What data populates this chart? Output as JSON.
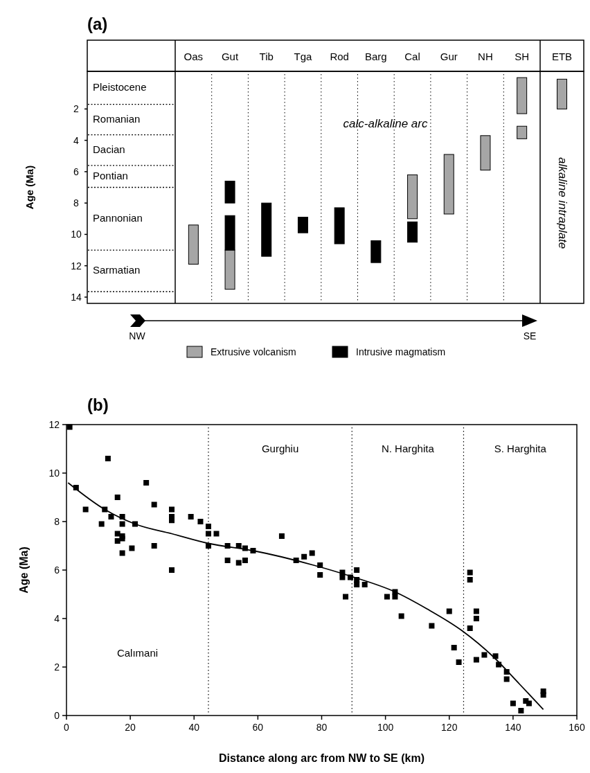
{
  "chart_data": [
    {
      "type": "bar",
      "title": "(a)",
      "ylabel": "Age (Ma)",
      "categories": [
        null,
        "Oas",
        "Gut",
        "Tib",
        "Tga",
        "Rod",
        "Barg",
        "Cal",
        "Gur",
        "NH",
        "SH",
        "ETB"
      ],
      "series": [
        {
          "name": "Extrusive volcanism",
          "color": "#a6a6a6",
          "base": [
            null,
            9.4,
            11.0,
            null,
            null,
            null,
            null,
            6.2,
            4.9,
            3.7,
            0.0,
            0.1
          ],
          "values": [
            null,
            2.5,
            2.5,
            null,
            null,
            null,
            null,
            2.8,
            3.8,
            2.2,
            2.3,
            1.9
          ]
        },
        {
          "name": "Intrusive magmatism",
          "color": "#000000",
          "base": [
            null,
            null,
            8.8,
            8.0,
            8.9,
            8.3,
            10.4,
            9.2,
            null,
            null,
            null,
            null
          ],
          "values": [
            null,
            null,
            2.2,
            3.4,
            1.0,
            2.3,
            1.4,
            1.3,
            null,
            null,
            null,
            null
          ]
        },
        {
          "color": "#a6a6a6",
          "base": [
            null,
            null,
            null,
            null,
            null,
            null,
            null,
            null,
            null,
            null,
            3.1,
            null
          ],
          "values": [
            null,
            null,
            null,
            null,
            null,
            null,
            null,
            null,
            null,
            null,
            0.8,
            null
          ]
        },
        {
          "color": "#000000",
          "base": [
            null,
            null,
            6.6,
            null,
            null,
            null,
            null,
            null,
            null,
            null,
            null,
            null
          ],
          "values": [
            null,
            null,
            1.4,
            null,
            null,
            null,
            null,
            null,
            null,
            null,
            null,
            null
          ]
        }
      ],
      "ylim": [
        14.4,
        -0.4
      ],
      "yticks": [
        2,
        4,
        6,
        8,
        10,
        12,
        14
      ],
      "ref_lines": [
        {
          "axis": "y",
          "value": 1.7,
          "line_style": "dotted"
        },
        {
          "axis": "y",
          "value": 3.65,
          "line_style": "dotted"
        },
        {
          "axis": "y",
          "value": 5.6,
          "line_style": "dotted"
        },
        {
          "axis": "y",
          "value": 7.0,
          "line_style": "dotted"
        },
        {
          "axis": "y",
          "value": 11.0,
          "line_style": "dotted"
        },
        {
          "axis": "y",
          "value": 13.65,
          "line_style": "dotted"
        }
      ],
      "annotations": [
        "Pleistocene",
        "Romanian",
        "Dacian",
        "Pontian",
        "Pannonian",
        "Sarmatian",
        "calc-alkaline arc",
        "alkaline intraplate",
        "NW",
        "SE"
      ],
      "legend": "bottom"
    },
    {
      "type": "scatter",
      "title": "(b)",
      "xlabel": "Distance along arc from NW to SE (km)",
      "ylabel": "Age (Ma)",
      "xlim": [
        0,
        160
      ],
      "xticks": [
        0,
        20,
        40,
        60,
        80,
        100,
        120,
        140,
        160
      ],
      "ylim": [
        0,
        12
      ],
      "yticks": [
        0,
        2,
        4,
        6,
        8,
        10,
        12
      ],
      "series": [
        {
          "type": "scatter",
          "color": "#000000",
          "marker": "square",
          "x": [
            1,
            13,
            3,
            25,
            6,
            12,
            16,
            27.5,
            33,
            33,
            33,
            14,
            17.5,
            17.5,
            11,
            21.5,
            39,
            42,
            44.5,
            44.5,
            47,
            16,
            17.5,
            16,
            17.5,
            27.5,
            20.5,
            17.5,
            44.5,
            50.5,
            54,
            56,
            58.5,
            50.5,
            54,
            56,
            67.5,
            33,
            72,
            74.5,
            77,
            79.5,
            79.5,
            86.5,
            86.5,
            89,
            87.5,
            91,
            91,
            91,
            93.5,
            100.5,
            103,
            103,
            105,
            114.5,
            120,
            121.5,
            123,
            126.5,
            126.5,
            126.5,
            128.5,
            128.5,
            128.5,
            131,
            134.5,
            135.5,
            138,
            138,
            140,
            142.5,
            144,
            145,
            149.5,
            149.5
          ],
          "values": [
            11.9,
            10.6,
            9.4,
            9.6,
            8.5,
            8.5,
            9.0,
            8.7,
            8.5,
            8.2,
            8.05,
            8.2,
            8.2,
            7.9,
            7.9,
            7.9,
            8.2,
            8.0,
            7.8,
            7.5,
            7.5,
            7.5,
            7.4,
            7.2,
            7.3,
            7.0,
            6.9,
            6.7,
            7.0,
            7.0,
            7.0,
            6.9,
            6.8,
            6.4,
            6.3,
            6.4,
            7.4,
            6.0,
            6.4,
            6.55,
            6.7,
            6.2,
            5.8,
            5.9,
            5.7,
            5.7,
            4.9,
            6.0,
            5.6,
            5.4,
            5.4,
            4.9,
            5.1,
            4.9,
            4.1,
            3.7,
            4.3,
            2.8,
            2.2,
            5.9,
            5.6,
            3.6,
            4.3,
            4.0,
            2.3,
            2.5,
            2.45,
            2.1,
            1.8,
            1.5,
            0.5,
            0.2,
            0.6,
            0.5,
            1.0,
            0.85
          ]
        },
        {
          "type": "line",
          "color": "#000000",
          "x": [
            0.5,
            12,
            21.5,
            33,
            44.5,
            58.5,
            77.5,
            89,
            103,
            113,
            124,
            134,
            142,
            149.5
          ],
          "values": [
            9.6,
            8.5,
            7.9,
            7.5,
            7.1,
            6.8,
            6.2,
            5.75,
            5.1,
            4.4,
            3.5,
            2.4,
            1.3,
            0.25
          ]
        }
      ],
      "ref_lines": [
        {
          "axis": "x",
          "value": 44.5,
          "line_style": "dotted"
        },
        {
          "axis": "x",
          "value": 89.5,
          "line_style": "dotted"
        },
        {
          "axis": "x",
          "value": 124.5,
          "line_style": "dotted"
        }
      ],
      "annotations": [
        "Calımani",
        "Gurghiu",
        "N. Harghita",
        "S. Harghita"
      ]
    }
  ]
}
